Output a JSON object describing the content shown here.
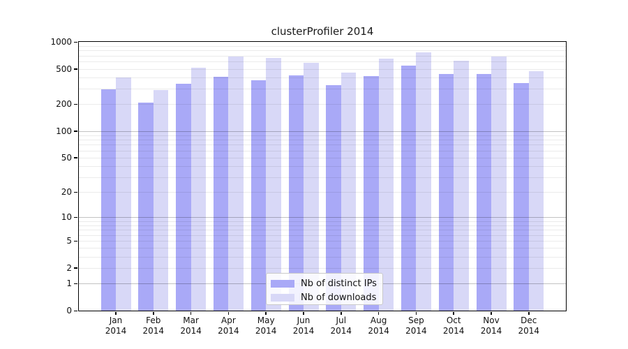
{
  "chart_data": {
    "type": "bar",
    "title": "clusterProfiler 2014",
    "scale": "log10(1+x)",
    "categories": [
      "Jan",
      "Feb",
      "Mar",
      "Apr",
      "May",
      "Jun",
      "Jul",
      "Aug",
      "Sep",
      "Oct",
      "Nov",
      "Dec"
    ],
    "x_sublabel": "2014",
    "series": [
      {
        "name": "Nb of distinct IPs",
        "color": "#a9a9f7",
        "values": [
          293,
          210,
          340,
          408,
          372,
          421,
          329,
          414,
          543,
          437,
          437,
          345
        ]
      },
      {
        "name": "Nb of downloads",
        "color": "#d8d8f7",
        "values": [
          399,
          289,
          516,
          687,
          662,
          583,
          454,
          645,
          766,
          614,
          686,
          468
        ]
      }
    ],
    "y_ticks": [
      1000,
      500,
      200,
      100,
      50,
      20,
      10,
      5,
      2,
      1,
      0
    ],
    "ylim": [
      0,
      1000
    ],
    "grid": true,
    "grid_major_values": [
      1,
      10,
      100
    ],
    "legend_position": "bottom-center",
    "background_color": "#ffffff",
    "frame_color": "#000000"
  }
}
